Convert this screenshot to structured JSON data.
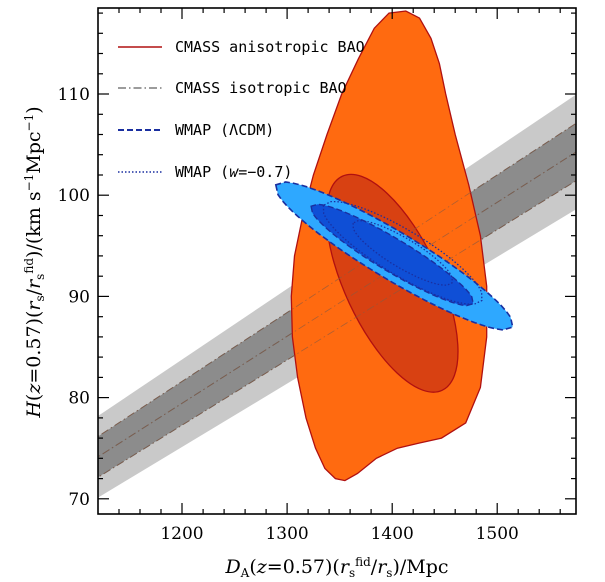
{
  "chart_data": {
    "type": "contour",
    "xlabel": "D_A(z=0.57)(r_s^fid/r_s)/Mpc",
    "ylabel": "H(z=0.57)(r_s/r_s^fid)/(km s^-1 Mpc^-1)",
    "xlim": [
      1120,
      1575
    ],
    "ylim": [
      68.5,
      118.5
    ],
    "xticks": [
      1200,
      1300,
      1400,
      1500
    ],
    "yticks": [
      70,
      80,
      90,
      100,
      110
    ],
    "xtick_labels": [
      "1200",
      "1300",
      "1400",
      "1500"
    ],
    "ytick_labels": [
      "70",
      "80",
      "90",
      "100",
      "110"
    ],
    "legend": {
      "placement": "top-left",
      "entries": [
        {
          "label": "CMASS anisotropic BAO",
          "style": "solid",
          "color": "#b01010"
        },
        {
          "label": "CMASS isotropic BAO",
          "style": "dash-dot",
          "color": "#606060"
        },
        {
          "label": "WMAP (ΛCDM)",
          "style": "dashed",
          "color": "#1a2fa0"
        },
        {
          "label": "WMAP (w=-0.7)",
          "style": "dotted",
          "color": "#1a2fa0"
        }
      ]
    },
    "series": [
      {
        "name": "CMASS isotropic BAO",
        "kind": "band",
        "relation": "H = k * D_A",
        "central_slope": 0.0662,
        "inner_slopes": [
          0.0644,
          0.068
        ],
        "outer_slopes": [
          0.0626,
          0.0698
        ],
        "colors": {
          "inner": "#8c8c8c",
          "outer": "#c9c9c9",
          "line": "#666666"
        }
      },
      {
        "name": "CMASS anisotropic BAO",
        "kind": "contours",
        "colors": {
          "outer": "#ff6a10",
          "inner": "#d84112",
          "edge": "#b01010"
        },
        "outer_contour": [
          [
            1346,
            72.0
          ],
          [
            1336,
            73.0
          ],
          [
            1327,
            75.0
          ],
          [
            1318,
            78.0
          ],
          [
            1310,
            82.0
          ],
          [
            1305,
            86.0
          ],
          [
            1304,
            90.0
          ],
          [
            1307,
            94.0
          ],
          [
            1315,
            98.0
          ],
          [
            1325,
            102.0
          ],
          [
            1338,
            106.0
          ],
          [
            1352,
            110.0
          ],
          [
            1368,
            113.5
          ],
          [
            1383,
            116.5
          ],
          [
            1397,
            118.0
          ],
          [
            1413,
            118.2
          ],
          [
            1426,
            117.5
          ],
          [
            1437,
            115.5
          ],
          [
            1445,
            113.0
          ],
          [
            1451,
            110.0
          ],
          [
            1460,
            106.0
          ],
          [
            1473,
            101.0
          ],
          [
            1484,
            96.0
          ],
          [
            1490,
            91.0
          ],
          [
            1490,
            86.0
          ],
          [
            1484,
            81.0
          ],
          [
            1470,
            77.5
          ],
          [
            1447,
            76.0
          ],
          [
            1425,
            75.5
          ],
          [
            1405,
            75.0
          ],
          [
            1385,
            74.0
          ],
          [
            1367,
            72.5
          ],
          [
            1355,
            71.8
          ]
        ],
        "inner_contour": {
          "center": [
            1400,
            91.3
          ],
          "semi_axes": [
            12.5,
            42.0
          ],
          "tilt_deg": 25
        }
      },
      {
        "name": "WMAP (ΛCDM)",
        "kind": "contours",
        "colors": {
          "outer": "#2ea8ff",
          "inner": "#0f4fd6",
          "line": "#1a2fa0"
        },
        "outer_contour": {
          "center": [
            1402,
            94.0
          ],
          "half_length": 131.5,
          "half_width": 0.65,
          "slope_deg": -31
        },
        "inner_contour": {
          "center": [
            1400,
            94.1
          ],
          "half_length": 90.0,
          "half_width": 0.45,
          "slope_deg": -31
        }
      },
      {
        "name": "WMAP (w=-0.7)",
        "kind": "contours",
        "colors": {
          "line": "#1a2fa0"
        },
        "outer_contour": {
          "center": [
            1410,
            94.3
          ],
          "half_length": 88.0,
          "half_width": 0.62,
          "slope_deg": -31
        },
        "inner_contour": {
          "center": [
            1410,
            94.3
          ],
          "half_length": 55.0,
          "half_width": 0.4,
          "slope_deg": -31
        }
      }
    ]
  }
}
